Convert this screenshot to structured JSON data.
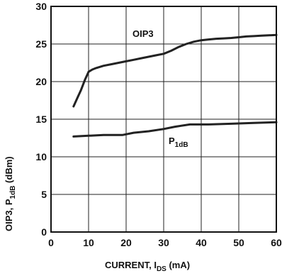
{
  "chart_data": {
    "type": "line",
    "xlabel": {
      "main": "CURRENT, I",
      "sub": "DS",
      "unit": " (mA)"
    },
    "ylabel": {
      "part1": "OIP3, P",
      "sub": "1dB",
      "part2": " (dBm)"
    },
    "xlim": [
      0,
      60
    ],
    "ylim": [
      0,
      30
    ],
    "xticks": [
      0,
      10,
      20,
      30,
      40,
      50,
      60
    ],
    "yticks": [
      0,
      5,
      10,
      15,
      20,
      25,
      30
    ],
    "grid": true,
    "series": [
      {
        "label": "OIP3",
        "label_sub": "",
        "x": [
          6,
          7,
          8,
          9,
          10,
          11,
          12,
          14,
          16,
          18,
          20,
          22,
          24,
          26,
          28,
          30,
          32,
          34,
          36,
          38,
          40,
          42,
          44,
          46,
          48,
          50,
          52,
          54,
          56,
          58,
          60
        ],
        "y": [
          16.7,
          17.8,
          18.9,
          20.2,
          21.3,
          21.6,
          21.8,
          22.1,
          22.3,
          22.5,
          22.7,
          22.9,
          23.1,
          23.3,
          23.5,
          23.7,
          24.1,
          24.6,
          25.0,
          25.3,
          25.5,
          25.6,
          25.7,
          25.75,
          25.8,
          25.9,
          26.0,
          26.05,
          26.1,
          26.15,
          26.2
        ]
      },
      {
        "label": "P",
        "label_sub": "1dB",
        "x": [
          6,
          10,
          14,
          19,
          22,
          26,
          30,
          33,
          37,
          42,
          48,
          54,
          60
        ],
        "y": [
          12.7,
          12.8,
          12.9,
          12.9,
          13.2,
          13.4,
          13.7,
          14.0,
          14.3,
          14.3,
          14.4,
          14.5,
          14.6
        ]
      }
    ]
  }
}
